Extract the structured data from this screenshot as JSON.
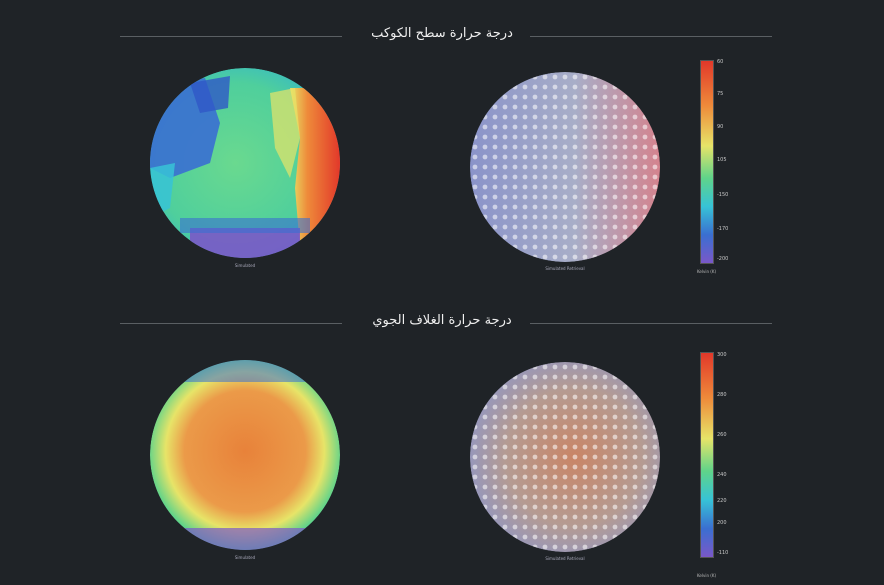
{
  "sections": [
    {
      "title": "درجة حرارة سطح الكوكب",
      "left_globe_label": "Simulated",
      "right_globe_label": "Simulated Retrieval",
      "scale_ticks": [
        "60",
        "75",
        "90",
        "105",
        "-150",
        "-170",
        "-200"
      ],
      "scale_unit": "Kelvin (K)"
    },
    {
      "title": "درجة حرارة الغلاف الجوي",
      "left_globe_label": "Simulated",
      "right_globe_label": "Simulated Retrieval",
      "scale_ticks": [
        "300",
        "280",
        "260",
        "240",
        "220",
        "200",
        "-110"
      ],
      "scale_unit": "Kelvin (K)"
    }
  ],
  "colors": {
    "background": "#1f2327",
    "red": "#e2382a",
    "orange": "#e8823a",
    "yellow": "#e7e468",
    "green": "#5fd38a",
    "cyan": "#37c3d6",
    "blue": "#3a6fd1",
    "purple": "#7a58c8"
  }
}
